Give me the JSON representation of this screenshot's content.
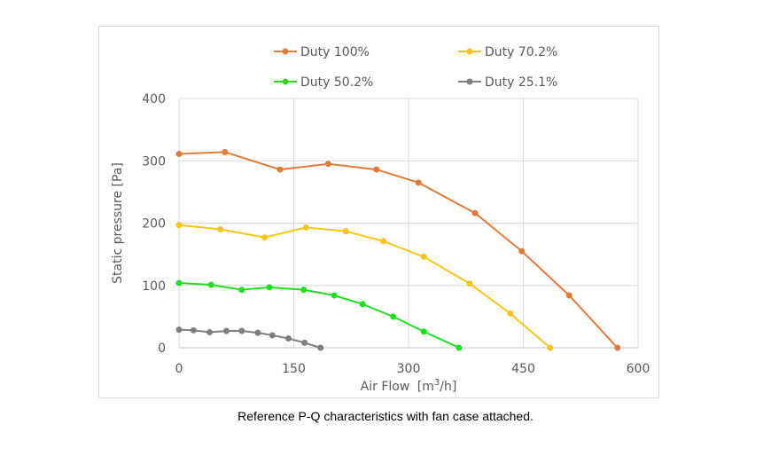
{
  "chart_data": {
    "type": "line",
    "title": "",
    "xlabel": "Air Flow",
    "xlabel_unit_base": "[m",
    "xlabel_unit_sup": "3",
    "xlabel_unit_tail": "/h]",
    "ylabel": "Static pressure [Pa]",
    "xlim": [
      0,
      600
    ],
    "ylim": [
      0,
      400
    ],
    "xticks": [
      0,
      150,
      300,
      450,
      600
    ],
    "yticks": [
      0,
      100,
      200,
      300,
      400
    ],
    "grid": true,
    "legend_position": "top",
    "series": [
      {
        "name": "Duty 100%",
        "color": "#e07b39",
        "points": [
          [
            0,
            311
          ],
          [
            60,
            314
          ],
          [
            132,
            286
          ],
          [
            195,
            295
          ],
          [
            258,
            286
          ],
          [
            313,
            265
          ],
          [
            387,
            216
          ],
          [
            448,
            155
          ],
          [
            510,
            84
          ],
          [
            573,
            0
          ]
        ]
      },
      {
        "name": "Duty 70.2%",
        "color": "#f5c518",
        "points": [
          [
            0,
            197
          ],
          [
            54,
            190
          ],
          [
            112,
            177
          ],
          [
            166,
            193
          ],
          [
            218,
            187
          ],
          [
            267,
            171
          ],
          [
            320,
            146
          ],
          [
            380,
            103
          ],
          [
            433,
            55
          ],
          [
            485,
            0
          ]
        ]
      },
      {
        "name": "Duty 50.2%",
        "color": "#22dd22",
        "points": [
          [
            0,
            104
          ],
          [
            42,
            101
          ],
          [
            82,
            93
          ],
          [
            118,
            97
          ],
          [
            163,
            93
          ],
          [
            203,
            84
          ],
          [
            240,
            70
          ],
          [
            280,
            50
          ],
          [
            320,
            26
          ],
          [
            366,
            0
          ]
        ]
      },
      {
        "name": "Duty 25.1%",
        "color": "#7f7f7f",
        "points": [
          [
            0,
            29
          ],
          [
            19,
            28
          ],
          [
            40,
            25
          ],
          [
            62,
            27
          ],
          [
            82,
            27
          ],
          [
            103,
            24
          ],
          [
            122,
            20
          ],
          [
            143,
            15
          ],
          [
            164,
            8
          ],
          [
            185,
            0
          ]
        ]
      }
    ]
  },
  "caption": "Reference P-Q characteristics with fan case attached."
}
